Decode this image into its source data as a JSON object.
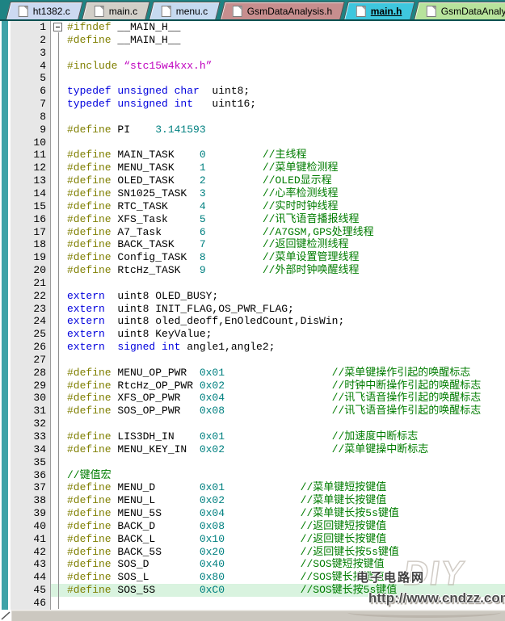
{
  "window": {
    "title": "main.h - source editor"
  },
  "colors": {
    "tabbar_bg": "#1e8383",
    "active_tab": "#3ec7de",
    "gutter_bg": "#e7e7e7",
    "teal_strip": "#3fa3a8",
    "line_highlight": "#d9f3df",
    "preprocessor": "#7f7f00",
    "keyword": "#0000dd",
    "number": "#008080",
    "comment": "#007c00",
    "string": "#bf00bf"
  },
  "tabs": [
    {
      "label": "ht1382.c",
      "color": "#ccd9f1",
      "active": false
    },
    {
      "label": "main.c",
      "color": "#d2cfc8",
      "active": false
    },
    {
      "label": "menu.c",
      "color": "#c6daf0",
      "active": false
    },
    {
      "label": "GsmDataAnalysis.h",
      "color": "#c78e8e",
      "active": false
    },
    {
      "label": "main.h",
      "color": "#3ec7de",
      "active": true
    },
    {
      "label": "GsmDataAnalysis.c",
      "color": "#b7e39c",
      "active": false
    }
  ],
  "editor": {
    "lines": [
      {
        "n": 1,
        "fold": "minus",
        "t": [
          [
            "pp",
            "#ifndef"
          ],
          [
            "pl",
            " __MAIN_H__"
          ]
        ]
      },
      {
        "n": 2,
        "t": [
          [
            "pp",
            "#define"
          ],
          [
            "pl",
            " __MAIN_H__"
          ]
        ]
      },
      {
        "n": 3,
        "t": []
      },
      {
        "n": 4,
        "t": [
          [
            "pp",
            "#include"
          ],
          [
            "pl",
            " "
          ],
          [
            "str",
            "“stc15w4kxx.h”"
          ]
        ]
      },
      {
        "n": 5,
        "t": []
      },
      {
        "n": 6,
        "t": [
          [
            "kw",
            "typedef unsigned char"
          ],
          [
            "pl",
            "  uint8;"
          ]
        ]
      },
      {
        "n": 7,
        "t": [
          [
            "kw",
            "typedef unsigned int"
          ],
          [
            "pl",
            "   uint16;"
          ]
        ]
      },
      {
        "n": 8,
        "t": []
      },
      {
        "n": 9,
        "t": [
          [
            "pp",
            "#define"
          ],
          [
            "pl",
            " PI    "
          ],
          [
            "num",
            "3.141593"
          ]
        ]
      },
      {
        "n": 10,
        "t": []
      },
      {
        "n": 11,
        "t": [
          [
            "pp",
            "#define"
          ],
          [
            "pl",
            " MAIN_TASK    "
          ],
          [
            "num",
            "0"
          ],
          [
            "pl",
            "         "
          ],
          [
            "com",
            "//主线程"
          ]
        ]
      },
      {
        "n": 12,
        "t": [
          [
            "pp",
            "#define"
          ],
          [
            "pl",
            " MENU_TASK    "
          ],
          [
            "num",
            "1"
          ],
          [
            "pl",
            "         "
          ],
          [
            "com",
            "//菜单键检测程"
          ]
        ]
      },
      {
        "n": 13,
        "t": [
          [
            "pp",
            "#define"
          ],
          [
            "pl",
            " OLED_TASK    "
          ],
          [
            "num",
            "2"
          ],
          [
            "pl",
            "         "
          ],
          [
            "com",
            "//OLED显示程"
          ]
        ]
      },
      {
        "n": 14,
        "t": [
          [
            "pp",
            "#define"
          ],
          [
            "pl",
            " SN1025_TASK  "
          ],
          [
            "num",
            "3"
          ],
          [
            "pl",
            "         "
          ],
          [
            "com",
            "//心率检测线程"
          ]
        ]
      },
      {
        "n": 15,
        "t": [
          [
            "pp",
            "#define"
          ],
          [
            "pl",
            " RTC_TASK     "
          ],
          [
            "num",
            "4"
          ],
          [
            "pl",
            "         "
          ],
          [
            "com",
            "//实时时钟线程"
          ]
        ]
      },
      {
        "n": 16,
        "t": [
          [
            "pp",
            "#define"
          ],
          [
            "pl",
            " XFS_Task     "
          ],
          [
            "num",
            "5"
          ],
          [
            "pl",
            "         "
          ],
          [
            "com",
            "//讯飞语音播报线程"
          ]
        ]
      },
      {
        "n": 17,
        "t": [
          [
            "pp",
            "#define"
          ],
          [
            "pl",
            " A7_Task      "
          ],
          [
            "num",
            "6"
          ],
          [
            "pl",
            "         "
          ],
          [
            "com",
            "//A7GSM,GPS处理线程"
          ]
        ]
      },
      {
        "n": 18,
        "t": [
          [
            "pp",
            "#define"
          ],
          [
            "pl",
            " BACK_TASK    "
          ],
          [
            "num",
            "7"
          ],
          [
            "pl",
            "         "
          ],
          [
            "com",
            "//返回键检测线程"
          ]
        ]
      },
      {
        "n": 19,
        "t": [
          [
            "pp",
            "#define"
          ],
          [
            "pl",
            " Config_TASK  "
          ],
          [
            "num",
            "8"
          ],
          [
            "pl",
            "         "
          ],
          [
            "com",
            "//菜单设置管理线程"
          ]
        ]
      },
      {
        "n": 20,
        "t": [
          [
            "pp",
            "#define"
          ],
          [
            "pl",
            " RtcHz_TASK   "
          ],
          [
            "num",
            "9"
          ],
          [
            "pl",
            "         "
          ],
          [
            "com",
            "//外部时钟唤醒线程"
          ]
        ]
      },
      {
        "n": 21,
        "t": []
      },
      {
        "n": 22,
        "t": [
          [
            "kw",
            "extern"
          ],
          [
            "pl",
            "  uint8 OLED_BUSY;"
          ]
        ]
      },
      {
        "n": 23,
        "t": [
          [
            "kw",
            "extern"
          ],
          [
            "pl",
            "  uint8 INIT_FLAG,OS_PWR_FLAG;"
          ]
        ]
      },
      {
        "n": 24,
        "t": [
          [
            "kw",
            "extern"
          ],
          [
            "pl",
            "  uint8 oled_deoff,EnOledCount,DisWin;"
          ]
        ]
      },
      {
        "n": 25,
        "t": [
          [
            "kw",
            "extern"
          ],
          [
            "pl",
            "  uint8 KeyValue;"
          ]
        ]
      },
      {
        "n": 26,
        "t": [
          [
            "kw",
            "extern"
          ],
          [
            "pl",
            "  "
          ],
          [
            "kw",
            "signed int"
          ],
          [
            "pl",
            " angle1,angle2;"
          ]
        ]
      },
      {
        "n": 27,
        "t": []
      },
      {
        "n": 28,
        "t": [
          [
            "pp",
            "#define"
          ],
          [
            "pl",
            " MENU_OP_PWR  "
          ],
          [
            "num",
            "0x01"
          ],
          [
            "pl",
            "                 "
          ],
          [
            "com",
            "//菜单键操作引起的唤醒标志"
          ]
        ]
      },
      {
        "n": 29,
        "t": [
          [
            "pp",
            "#define"
          ],
          [
            "pl",
            " RtcHz_OP_PWR "
          ],
          [
            "num",
            "0x02"
          ],
          [
            "pl",
            "                 "
          ],
          [
            "com",
            "//时钟中断操作引起的唤醒标志"
          ]
        ]
      },
      {
        "n": 30,
        "t": [
          [
            "pp",
            "#define"
          ],
          [
            "pl",
            " XFS_OP_PWR   "
          ],
          [
            "num",
            "0x04"
          ],
          [
            "pl",
            "                 "
          ],
          [
            "com",
            "//讯飞语音操作引起的唤醒标志"
          ]
        ]
      },
      {
        "n": 31,
        "t": [
          [
            "pp",
            "#define"
          ],
          [
            "pl",
            " SOS_OP_PWR   "
          ],
          [
            "num",
            "0x08"
          ],
          [
            "pl",
            "                 "
          ],
          [
            "com",
            "//讯飞语音操作引起的唤醒标志"
          ]
        ]
      },
      {
        "n": 32,
        "t": []
      },
      {
        "n": 33,
        "t": [
          [
            "pp",
            "#define"
          ],
          [
            "pl",
            " LIS3DH_IN    "
          ],
          [
            "num",
            "0x01"
          ],
          [
            "pl",
            "                 "
          ],
          [
            "com",
            "//加速度中断标志"
          ]
        ]
      },
      {
        "n": 34,
        "t": [
          [
            "pp",
            "#define"
          ],
          [
            "pl",
            " MENU_KEY_IN  "
          ],
          [
            "num",
            "0x02"
          ],
          [
            "pl",
            "                 "
          ],
          [
            "com",
            "//菜单键操中断标志"
          ]
        ]
      },
      {
        "n": 35,
        "t": []
      },
      {
        "n": 36,
        "t": [
          [
            "com",
            "//键值宏"
          ]
        ]
      },
      {
        "n": 37,
        "t": [
          [
            "pp",
            "#define"
          ],
          [
            "pl",
            " MENU_D       "
          ],
          [
            "num",
            "0x01"
          ],
          [
            "pl",
            "            "
          ],
          [
            "com",
            "//菜单键短按键值"
          ]
        ]
      },
      {
        "n": 38,
        "t": [
          [
            "pp",
            "#define"
          ],
          [
            "pl",
            " MENU_L       "
          ],
          [
            "num",
            "0x02"
          ],
          [
            "pl",
            "            "
          ],
          [
            "com",
            "//菜单键长按键值"
          ]
        ]
      },
      {
        "n": 39,
        "t": [
          [
            "pp",
            "#define"
          ],
          [
            "pl",
            " MENU_5S      "
          ],
          [
            "num",
            "0x04"
          ],
          [
            "pl",
            "            "
          ],
          [
            "com",
            "//菜单键长按5s键值"
          ]
        ]
      },
      {
        "n": 40,
        "t": [
          [
            "pp",
            "#define"
          ],
          [
            "pl",
            " BACK_D       "
          ],
          [
            "num",
            "0x08"
          ],
          [
            "pl",
            "            "
          ],
          [
            "com",
            "//返回键短按键值"
          ]
        ]
      },
      {
        "n": 41,
        "t": [
          [
            "pp",
            "#define"
          ],
          [
            "pl",
            " BACK_L       "
          ],
          [
            "num",
            "0x10"
          ],
          [
            "pl",
            "            "
          ],
          [
            "com",
            "//返回键长按键值"
          ]
        ]
      },
      {
        "n": 42,
        "t": [
          [
            "pp",
            "#define"
          ],
          [
            "pl",
            " BACK_5S      "
          ],
          [
            "num",
            "0x20"
          ],
          [
            "pl",
            "            "
          ],
          [
            "com",
            "//返回键长按5s键值"
          ]
        ]
      },
      {
        "n": 43,
        "t": [
          [
            "pp",
            "#define"
          ],
          [
            "pl",
            " SOS_D        "
          ],
          [
            "num",
            "0x40"
          ],
          [
            "pl",
            "            "
          ],
          [
            "com",
            "//SOS键短按键值"
          ]
        ]
      },
      {
        "n": 44,
        "t": [
          [
            "pp",
            "#define"
          ],
          [
            "pl",
            " SOS_L        "
          ],
          [
            "num",
            "0x80"
          ],
          [
            "pl",
            "            "
          ],
          [
            "com",
            "//SOS键长按键值"
          ]
        ]
      },
      {
        "n": 45,
        "highlight": true,
        "t": [
          [
            "pp",
            "#define"
          ],
          [
            "pl",
            " SOS_5S       "
          ],
          [
            "num",
            "0xC0"
          ],
          [
            "pl",
            "            "
          ],
          [
            "com",
            "//SOS键长按5s键值"
          ]
        ]
      },
      {
        "n": 46,
        "t": []
      }
    ]
  },
  "watermark": {
    "site_name": "电子电路网",
    "url": "http://www.cndzz.com/",
    "logo_text": "DIY"
  }
}
